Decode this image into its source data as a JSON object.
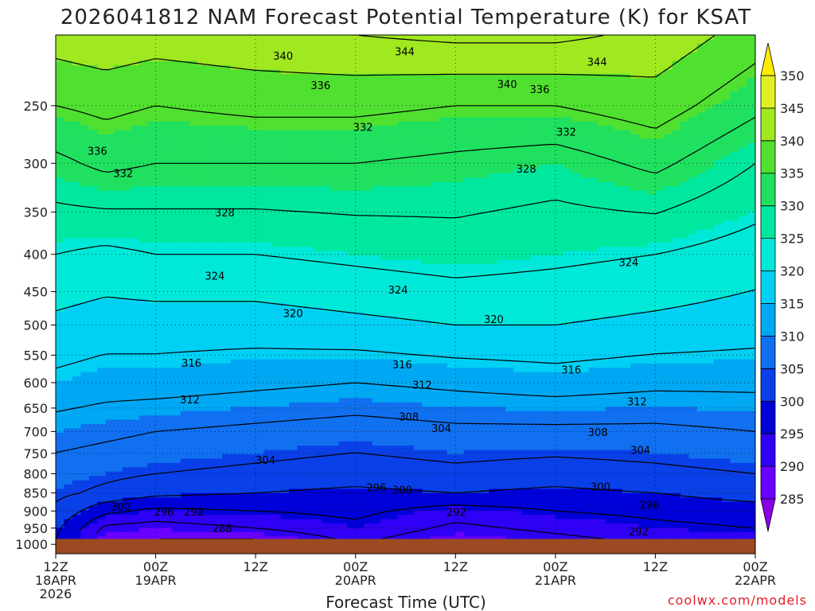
{
  "title": "2026041812 NAM Forecast Potential Temperature (K) for KSAT",
  "xlabel": "Forecast Time (UTC)",
  "credit": "coolwx.com/models",
  "colors": {
    "ground": "#9c4a22",
    "contour": "#000000",
    "credit": "#e0202a"
  },
  "chart_data": {
    "type": "heatmap",
    "title": "2026041812 NAM Forecast Potential Temperature (K) for KSAT",
    "xlabel": "Forecast Time (UTC)",
    "ylabel": "",
    "x_ticks": [
      {
        "h": 0,
        "lines": [
          "12Z",
          "18APR",
          "2026"
        ]
      },
      {
        "h": 12,
        "lines": [
          "00Z",
          "19APR"
        ]
      },
      {
        "h": 24,
        "lines": [
          "12Z"
        ]
      },
      {
        "h": 36,
        "lines": [
          "00Z",
          "20APR"
        ]
      },
      {
        "h": 48,
        "lines": [
          "12Z"
        ]
      },
      {
        "h": 60,
        "lines": [
          "00Z",
          "21APR"
        ]
      },
      {
        "h": 72,
        "lines": [
          "12Z"
        ]
      },
      {
        "h": 84,
        "lines": [
          "00Z",
          "22APR"
        ]
      }
    ],
    "xlim": [
      0,
      84
    ],
    "y_scale": "log",
    "ylim": [
      1030,
      200
    ],
    "y_ticks": [
      250,
      300,
      350,
      400,
      450,
      500,
      550,
      600,
      650,
      700,
      750,
      800,
      850,
      900,
      950,
      1000
    ],
    "surface_pressure_hpa": 983,
    "grid": true,
    "colorbar": {
      "levels": [
        285,
        290,
        295,
        300,
        305,
        310,
        315,
        320,
        325,
        330,
        335,
        340,
        345,
        350
      ],
      "colors": [
        "#8a00e6",
        "#6a00ff",
        "#2f00f5",
        "#0000d8",
        "#0a40e8",
        "#1070f0",
        "#00a8f4",
        "#00d0f4",
        "#00e8d8",
        "#00e8a0",
        "#20e060",
        "#50e030",
        "#a0e820",
        "#e0f020",
        "#ffec00"
      ]
    },
    "contour_levels": [
      288,
      292,
      296,
      300,
      304,
      308,
      312,
      316,
      320,
      324,
      328,
      332,
      336,
      340,
      344
    ],
    "profiles": [
      {
        "h": 0,
        "p": [
          983,
          950,
          900,
          850,
          800,
          700,
          600,
          500,
          400,
          300,
          250,
          200
        ],
        "theta": [
          300,
          301,
          303,
          305,
          306,
          310,
          315,
          319,
          324,
          331,
          336,
          342
        ]
      },
      {
        "h": 6,
        "p": [
          983,
          950,
          900,
          850,
          800,
          700,
          600,
          500,
          400,
          300,
          250,
          200
        ],
        "theta": [
          289,
          291,
          297,
          303,
          305,
          309,
          314,
          318,
          323,
          333,
          337,
          343
        ]
      },
      {
        "h": 12,
        "p": [
          983,
          950,
          900,
          850,
          800,
          700,
          600,
          500,
          400,
          300,
          250,
          200
        ],
        "theta": [
          288,
          290,
          295,
          301,
          304,
          308,
          314,
          318,
          324,
          332,
          336,
          342
        ]
      },
      {
        "h": 24,
        "p": [
          983,
          950,
          900,
          850,
          800,
          700,
          600,
          500,
          400,
          300,
          250,
          200
        ],
        "theta": [
          288,
          292,
          296,
          300,
          303,
          307,
          313,
          318,
          324,
          332,
          337,
          343
        ]
      },
      {
        "h": 36,
        "p": [
          983,
          950,
          900,
          850,
          800,
          700,
          600,
          500,
          400,
          300,
          250,
          200
        ],
        "theta": [
          293,
          295,
          297,
          299,
          302,
          306,
          312,
          319,
          325,
          332,
          337,
          344
        ]
      },
      {
        "h": 48,
        "p": [
          983,
          950,
          900,
          850,
          800,
          700,
          600,
          500,
          400,
          300,
          250,
          200
        ],
        "theta": [
          289,
          291,
          294,
          300,
          303,
          307,
          313,
          320,
          326,
          331,
          336,
          345
        ]
      },
      {
        "h": 60,
        "p": [
          983,
          950,
          900,
          850,
          800,
          700,
          600,
          500,
          400,
          300,
          250,
          200
        ],
        "theta": [
          291,
          293,
          296,
          299,
          302,
          307,
          314,
          320,
          325,
          330,
          336,
          345
        ]
      },
      {
        "h": 72,
        "p": [
          983,
          950,
          900,
          850,
          800,
          700,
          600,
          500,
          400,
          300,
          250,
          200
        ],
        "theta": [
          293,
          295,
          297,
          300,
          303,
          307,
          313,
          319,
          324,
          333,
          338,
          343
        ]
      },
      {
        "h": 84,
        "p": [
          983,
          950,
          900,
          850,
          800,
          700,
          600,
          500,
          400,
          300,
          250,
          200
        ],
        "theta": [
          294,
          296,
          298,
          302,
          304,
          308,
          313,
          318,
          322,
          328,
          333,
          338
        ]
      }
    ],
    "contour_labels": [
      {
        "h": 27.3,
        "p": 214,
        "v": 340
      },
      {
        "h": 41.9,
        "p": 211,
        "v": 344
      },
      {
        "h": 65.0,
        "p": 218,
        "v": 344
      },
      {
        "h": 31.8,
        "p": 235,
        "v": 336
      },
      {
        "h": 54.2,
        "p": 234,
        "v": 340
      },
      {
        "h": 58.1,
        "p": 238,
        "v": 336
      },
      {
        "h": 5.0,
        "p": 289,
        "v": 336
      },
      {
        "h": 36.9,
        "p": 268,
        "v": 332
      },
      {
        "h": 61.3,
        "p": 272,
        "v": 332
      },
      {
        "h": 8.1,
        "p": 310,
        "v": 332
      },
      {
        "h": 56.5,
        "p": 306,
        "v": 328
      },
      {
        "h": 20.3,
        "p": 351,
        "v": 328
      },
      {
        "h": 68.8,
        "p": 411,
        "v": 324
      },
      {
        "h": 19.1,
        "p": 429,
        "v": 324
      },
      {
        "h": 41.1,
        "p": 448,
        "v": 324
      },
      {
        "h": 28.5,
        "p": 483,
        "v": 320
      },
      {
        "h": 52.6,
        "p": 492,
        "v": 320
      },
      {
        "h": 16.3,
        "p": 565,
        "v": 316
      },
      {
        "h": 41.6,
        "p": 568,
        "v": 316
      },
      {
        "h": 61.9,
        "p": 577,
        "v": 316
      },
      {
        "h": 44.0,
        "p": 605,
        "v": 312
      },
      {
        "h": 16.1,
        "p": 634,
        "v": 312
      },
      {
        "h": 69.8,
        "p": 638,
        "v": 312
      },
      {
        "h": 42.4,
        "p": 669,
        "v": 308
      },
      {
        "h": 65.1,
        "p": 703,
        "v": 308
      },
      {
        "h": 46.3,
        "p": 694,
        "v": 304
      },
      {
        "h": 70.2,
        "p": 744,
        "v": 304
      },
      {
        "h": 25.2,
        "p": 768,
        "v": 304
      },
      {
        "h": 38.5,
        "p": 837,
        "v": 296
      },
      {
        "h": 41.6,
        "p": 843,
        "v": 300
      },
      {
        "h": 65.4,
        "p": 835,
        "v": 300
      },
      {
        "h": 7.8,
        "p": 889,
        "v": 300
      },
      {
        "h": 13.0,
        "p": 904,
        "v": 296
      },
      {
        "h": 16.6,
        "p": 904,
        "v": 292
      },
      {
        "h": 48.1,
        "p": 905,
        "v": 292
      },
      {
        "h": 71.3,
        "p": 885,
        "v": 296
      },
      {
        "h": 20.0,
        "p": 953,
        "v": 288
      },
      {
        "h": 70.0,
        "p": 963,
        "v": 292
      }
    ]
  }
}
